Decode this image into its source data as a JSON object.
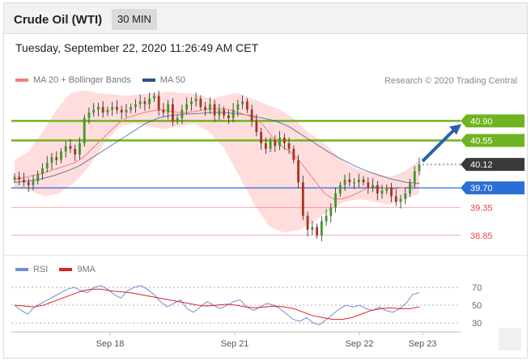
{
  "header": {
    "title": "Crude Oil (WTI)",
    "interval": "30 MIN",
    "timestamp": "Tuesday, September 22, 2020 11:26:49 AM CET"
  },
  "legend_main": {
    "ma20": {
      "label": "MA 20 + Bollinger Bands",
      "color": "#f08080"
    },
    "ma50": {
      "label": "MA 50",
      "color": "#2c4f8c"
    }
  },
  "research": "Research © 2020 Trading Central",
  "legend_rsi": {
    "rsi": {
      "label": "RSI",
      "color": "#6f8fd8"
    },
    "ma9": {
      "label": "9MA",
      "color": "#dd2222"
    }
  },
  "colors": {
    "up_candle": "#3a9a2a",
    "down_candle": "#b03020",
    "bollinger_fill": "#ffd2d2",
    "resistance": "#6fb320",
    "pivot": "#2b6fd6",
    "support": "#ee4444",
    "current_price_box": "#3a3a3a",
    "arrow": "#2a62a8"
  },
  "chart_data": [
    {
      "type": "line",
      "chart": "price",
      "x_labels": [
        "Sep 18",
        "Sep 21",
        "Sep 22",
        "Sep 23"
      ],
      "ylim": [
        38.6,
        41.5
      ],
      "levels": [
        {
          "value": 40.9,
          "label": "40.90",
          "kind": "resistance"
        },
        {
          "value": 40.55,
          "label": "40.55",
          "kind": "resistance"
        },
        {
          "value": 40.12,
          "label": "40.12",
          "kind": "current"
        },
        {
          "value": 39.7,
          "label": "39.70",
          "kind": "pivot"
        },
        {
          "value": 39.35,
          "label": "39.35",
          "kind": "support"
        },
        {
          "value": 38.85,
          "label": "38.85",
          "kind": "support"
        }
      ],
      "close": [
        39.9,
        39.85,
        39.8,
        39.75,
        39.82,
        39.95,
        40.05,
        40.15,
        40.25,
        40.2,
        40.35,
        40.45,
        40.4,
        40.3,
        40.5,
        40.95,
        41.05,
        41.1,
        41.15,
        41.05,
        41.1,
        41.15,
        41.1,
        41.05,
        41.1,
        41.15,
        41.2,
        41.25,
        41.2,
        41.3,
        41.35,
        41.1,
        41.05,
        41.2,
        40.9,
        40.95,
        41.1,
        41.2,
        41.25,
        41.3,
        41.15,
        41.1,
        41.2,
        41.0,
        41.1,
        41.0,
        40.95,
        41.1,
        41.2,
        41.25,
        41.1,
        40.9,
        40.7,
        40.5,
        40.4,
        40.55,
        40.45,
        40.6,
        40.5,
        40.4,
        40.2,
        39.8,
        39.2,
        38.95,
        39.0,
        38.85,
        39.1,
        39.2,
        39.35,
        39.6,
        39.75,
        39.85,
        39.8,
        39.8,
        39.85,
        39.8,
        39.7,
        39.75,
        39.6,
        39.65,
        39.7,
        39.55,
        39.45,
        39.5,
        39.6,
        39.8,
        40.0,
        40.12
      ],
      "ma20": [
        39.85,
        39.88,
        39.92,
        39.95,
        40.0,
        40.05,
        40.1,
        40.15,
        40.25,
        40.4,
        40.55,
        40.7,
        40.85,
        40.95,
        41.0,
        41.05,
        41.08,
        41.1,
        41.08,
        41.05,
        41.05,
        41.07,
        41.1,
        41.12,
        41.12,
        41.1,
        41.05,
        41.0,
        40.95,
        40.8,
        40.6,
        40.45,
        40.35,
        40.2,
        40.0,
        39.8,
        39.6,
        39.5,
        39.5,
        39.55,
        39.62,
        39.7,
        39.72,
        39.7,
        39.68,
        39.7,
        39.72,
        39.8
      ],
      "ma50": [
        39.8,
        39.82,
        39.86,
        39.92,
        40.0,
        40.1,
        40.25,
        40.4,
        40.55,
        40.7,
        40.85,
        40.95,
        41.0,
        41.02,
        41.03,
        41.05,
        41.05,
        41.03,
        41.0,
        40.95,
        40.9,
        40.8,
        40.65,
        40.5,
        40.35,
        40.22,
        40.1,
        40.0,
        39.92,
        39.85,
        39.8,
        39.78
      ],
      "bollinger_upper": [
        40.2,
        40.35,
        40.7,
        41.1,
        41.4,
        41.45,
        41.4,
        41.38,
        41.35,
        41.38,
        41.4,
        41.42,
        41.4,
        41.38,
        41.3,
        41.35,
        41.4,
        41.3,
        41.2,
        41.1,
        40.95,
        40.7,
        40.55,
        40.3,
        40.1,
        40.0,
        39.95,
        39.9,
        40.0,
        40.2
      ],
      "bollinger_lower": [
        39.7,
        39.65,
        39.55,
        39.6,
        39.8,
        40.1,
        40.5,
        40.8,
        40.85,
        40.8,
        40.75,
        40.8,
        40.85,
        40.7,
        40.4,
        39.9,
        39.4,
        39.0,
        38.9,
        38.95,
        39.1,
        39.3,
        39.45,
        39.5,
        39.45,
        39.4,
        39.5,
        39.6
      ]
    },
    {
      "type": "line",
      "chart": "rsi",
      "ylim": [
        20,
        80
      ],
      "ticks": [
        {
          "value": 70,
          "label": "70"
        },
        {
          "value": 50,
          "label": "50"
        },
        {
          "value": 30,
          "label": "30"
        }
      ],
      "rsi": [
        50,
        44,
        40,
        48,
        52,
        56,
        60,
        64,
        68,
        70,
        66,
        64,
        70,
        72,
        68,
        62,
        58,
        66,
        70,
        72,
        68,
        62,
        54,
        48,
        52,
        56,
        46,
        42,
        48,
        54,
        50,
        46,
        50,
        54,
        56,
        48,
        44,
        48,
        52,
        50,
        46,
        40,
        34,
        32,
        36,
        30,
        28,
        34,
        40,
        46,
        50,
        48,
        50,
        46,
        44,
        48,
        44,
        42,
        46,
        52,
        62,
        64
      ],
      "ma9": [
        50,
        49,
        48,
        50,
        54,
        58,
        62,
        66,
        68,
        68,
        66,
        65,
        64,
        62,
        60,
        58,
        56,
        54,
        52,
        50,
        49,
        50,
        51,
        50,
        48,
        47,
        48,
        49,
        48,
        46,
        42,
        38,
        36,
        34,
        34,
        36,
        40,
        44,
        46,
        47,
        46,
        46,
        48
      ]
    }
  ]
}
